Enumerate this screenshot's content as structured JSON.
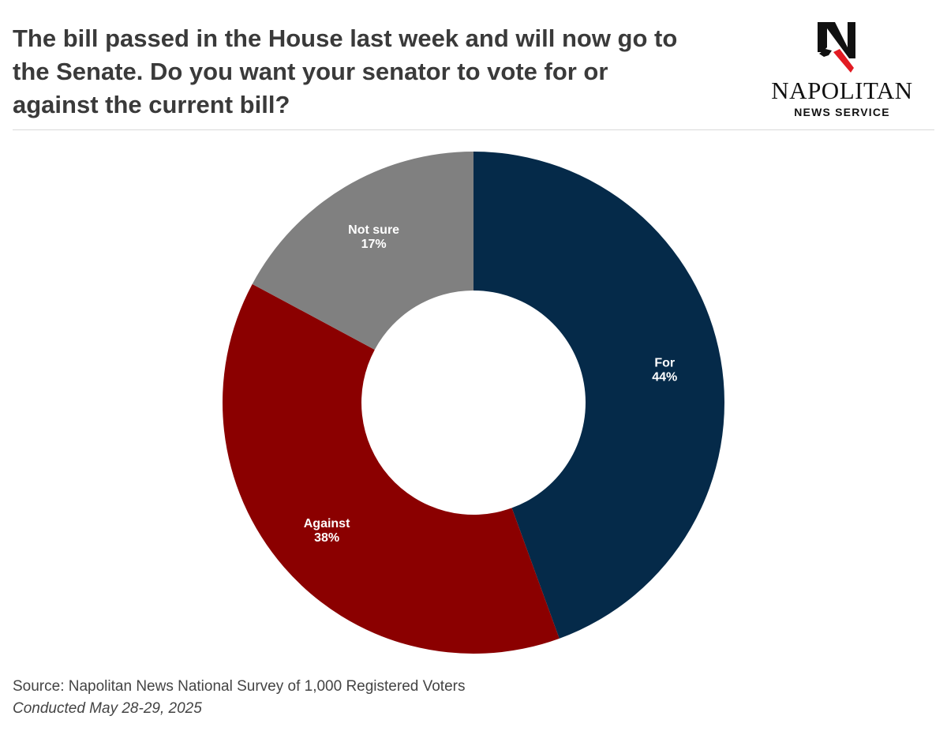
{
  "title_lines": [
    "The bill passed in the House last week and will now go to",
    "the Senate. Do you want your senator to vote for or",
    "against the current bill?"
  ],
  "logo": {
    "name": "NAPOLITAN",
    "subtitle": "NEWS SERVICE",
    "mark": "N"
  },
  "chart_data": {
    "type": "pie",
    "variant": "donut",
    "slices": [
      {
        "label": "For",
        "value": 44,
        "display": "44%",
        "color": "#052a49"
      },
      {
        "label": "Against",
        "value": 38,
        "display": "38%",
        "color": "#8b0000"
      },
      {
        "label": "Not sure",
        "value": 17,
        "display": "17%",
        "color": "#808080"
      }
    ],
    "start": "12 o'clock",
    "direction": "clockwise",
    "legend": "none"
  },
  "footer": {
    "source": "Source: Napolitan News National Survey of 1,000 Registered Voters",
    "dates": "Conducted May 28-29, 2025"
  }
}
